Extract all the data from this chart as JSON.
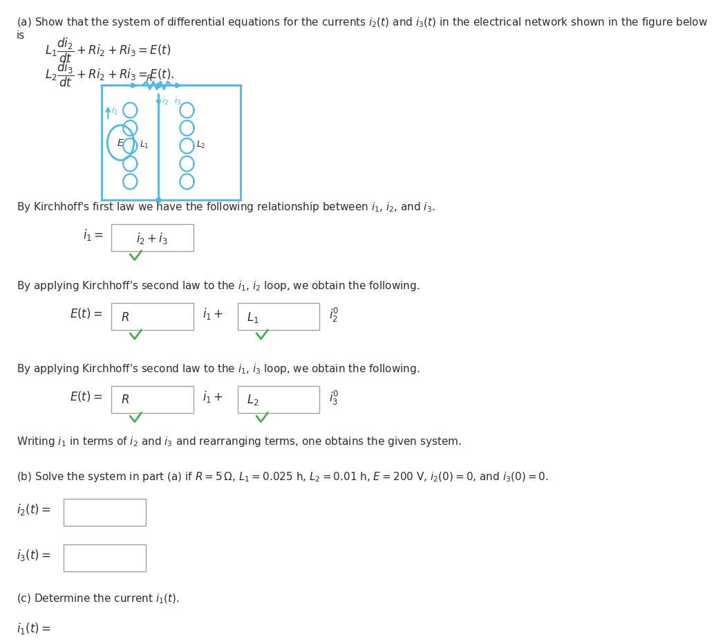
{
  "background_color": "#ffffff",
  "text_color": "#2d2d2d",
  "circuit_color": "#4db8e8",
  "highlight_color": "#cc0000",
  "green_check_color": "#4aaa4a",
  "box_border_color": "#a0a0a0",
  "title_text": "(a) Show that the system of differential equations for the currents $i_2(t)$ and $i_3(t)$ in the electrical network shown in the figure below is",
  "eq1": "$L_1 \\dfrac{di_2}{dt} + Ri_2 + Ri_3 = E(t)$",
  "eq2": "$L_2 \\dfrac{di_3}{dt} + Ri_2 + Ri_3 = E(t).$",
  "kirchhoff1_text": "By Kirchhoff's first law we have the following relationship between $i_1$, $i_2$, and $i_3$.",
  "kirchhoff1_eq_left": "$i_1 =$",
  "kirchhoff1_eq_box": "$i_2 + i_3$",
  "kirchhoff2a_text": "By applying Kirchhoff's second law to the $i_1$, $i_2$ loop, we obtain the following.",
  "kirchhoff2a_left": "$E(t) =$",
  "kirchhoff2a_box1": "$R$",
  "kirchhoff2a_mid": "$i_1 +$",
  "kirchhoff2a_box2": "$L_1$",
  "kirchhoff2a_right": "$i_2'$",
  "kirchhoff2b_text": "By applying Kirchhoff's second law to the $i_1$, $i_3$ loop, we obtain the following.",
  "kirchhoff2b_left": "$E(t) =$",
  "kirchhoff2b_box1": "$R$",
  "kirchhoff2b_mid": "$i_1 +$",
  "kirchhoff2b_box2": "$L_2$",
  "kirchhoff2b_right": "$i_3'$",
  "writing_text": "Writing $i_1$ in terms of $i_2$ and $i_3$ and rearranging terms, one obtains the given system.",
  "part_b_text": "(b) Solve the system in part (a) if $R = 5\\,\\Omega$, $L_1 = 0.025$ h, $L_2 = 0.01$ h, $E = 200$ V, $i_2(0) = 0$, and $i_3(0) = 0$.",
  "i2_label": "$i_2(t) =$",
  "i3_label": "$i_3(t) =$",
  "part_c_text": "(c) Determine the current $i_1(t)$.",
  "i1_label": "$i_1(t) =$"
}
